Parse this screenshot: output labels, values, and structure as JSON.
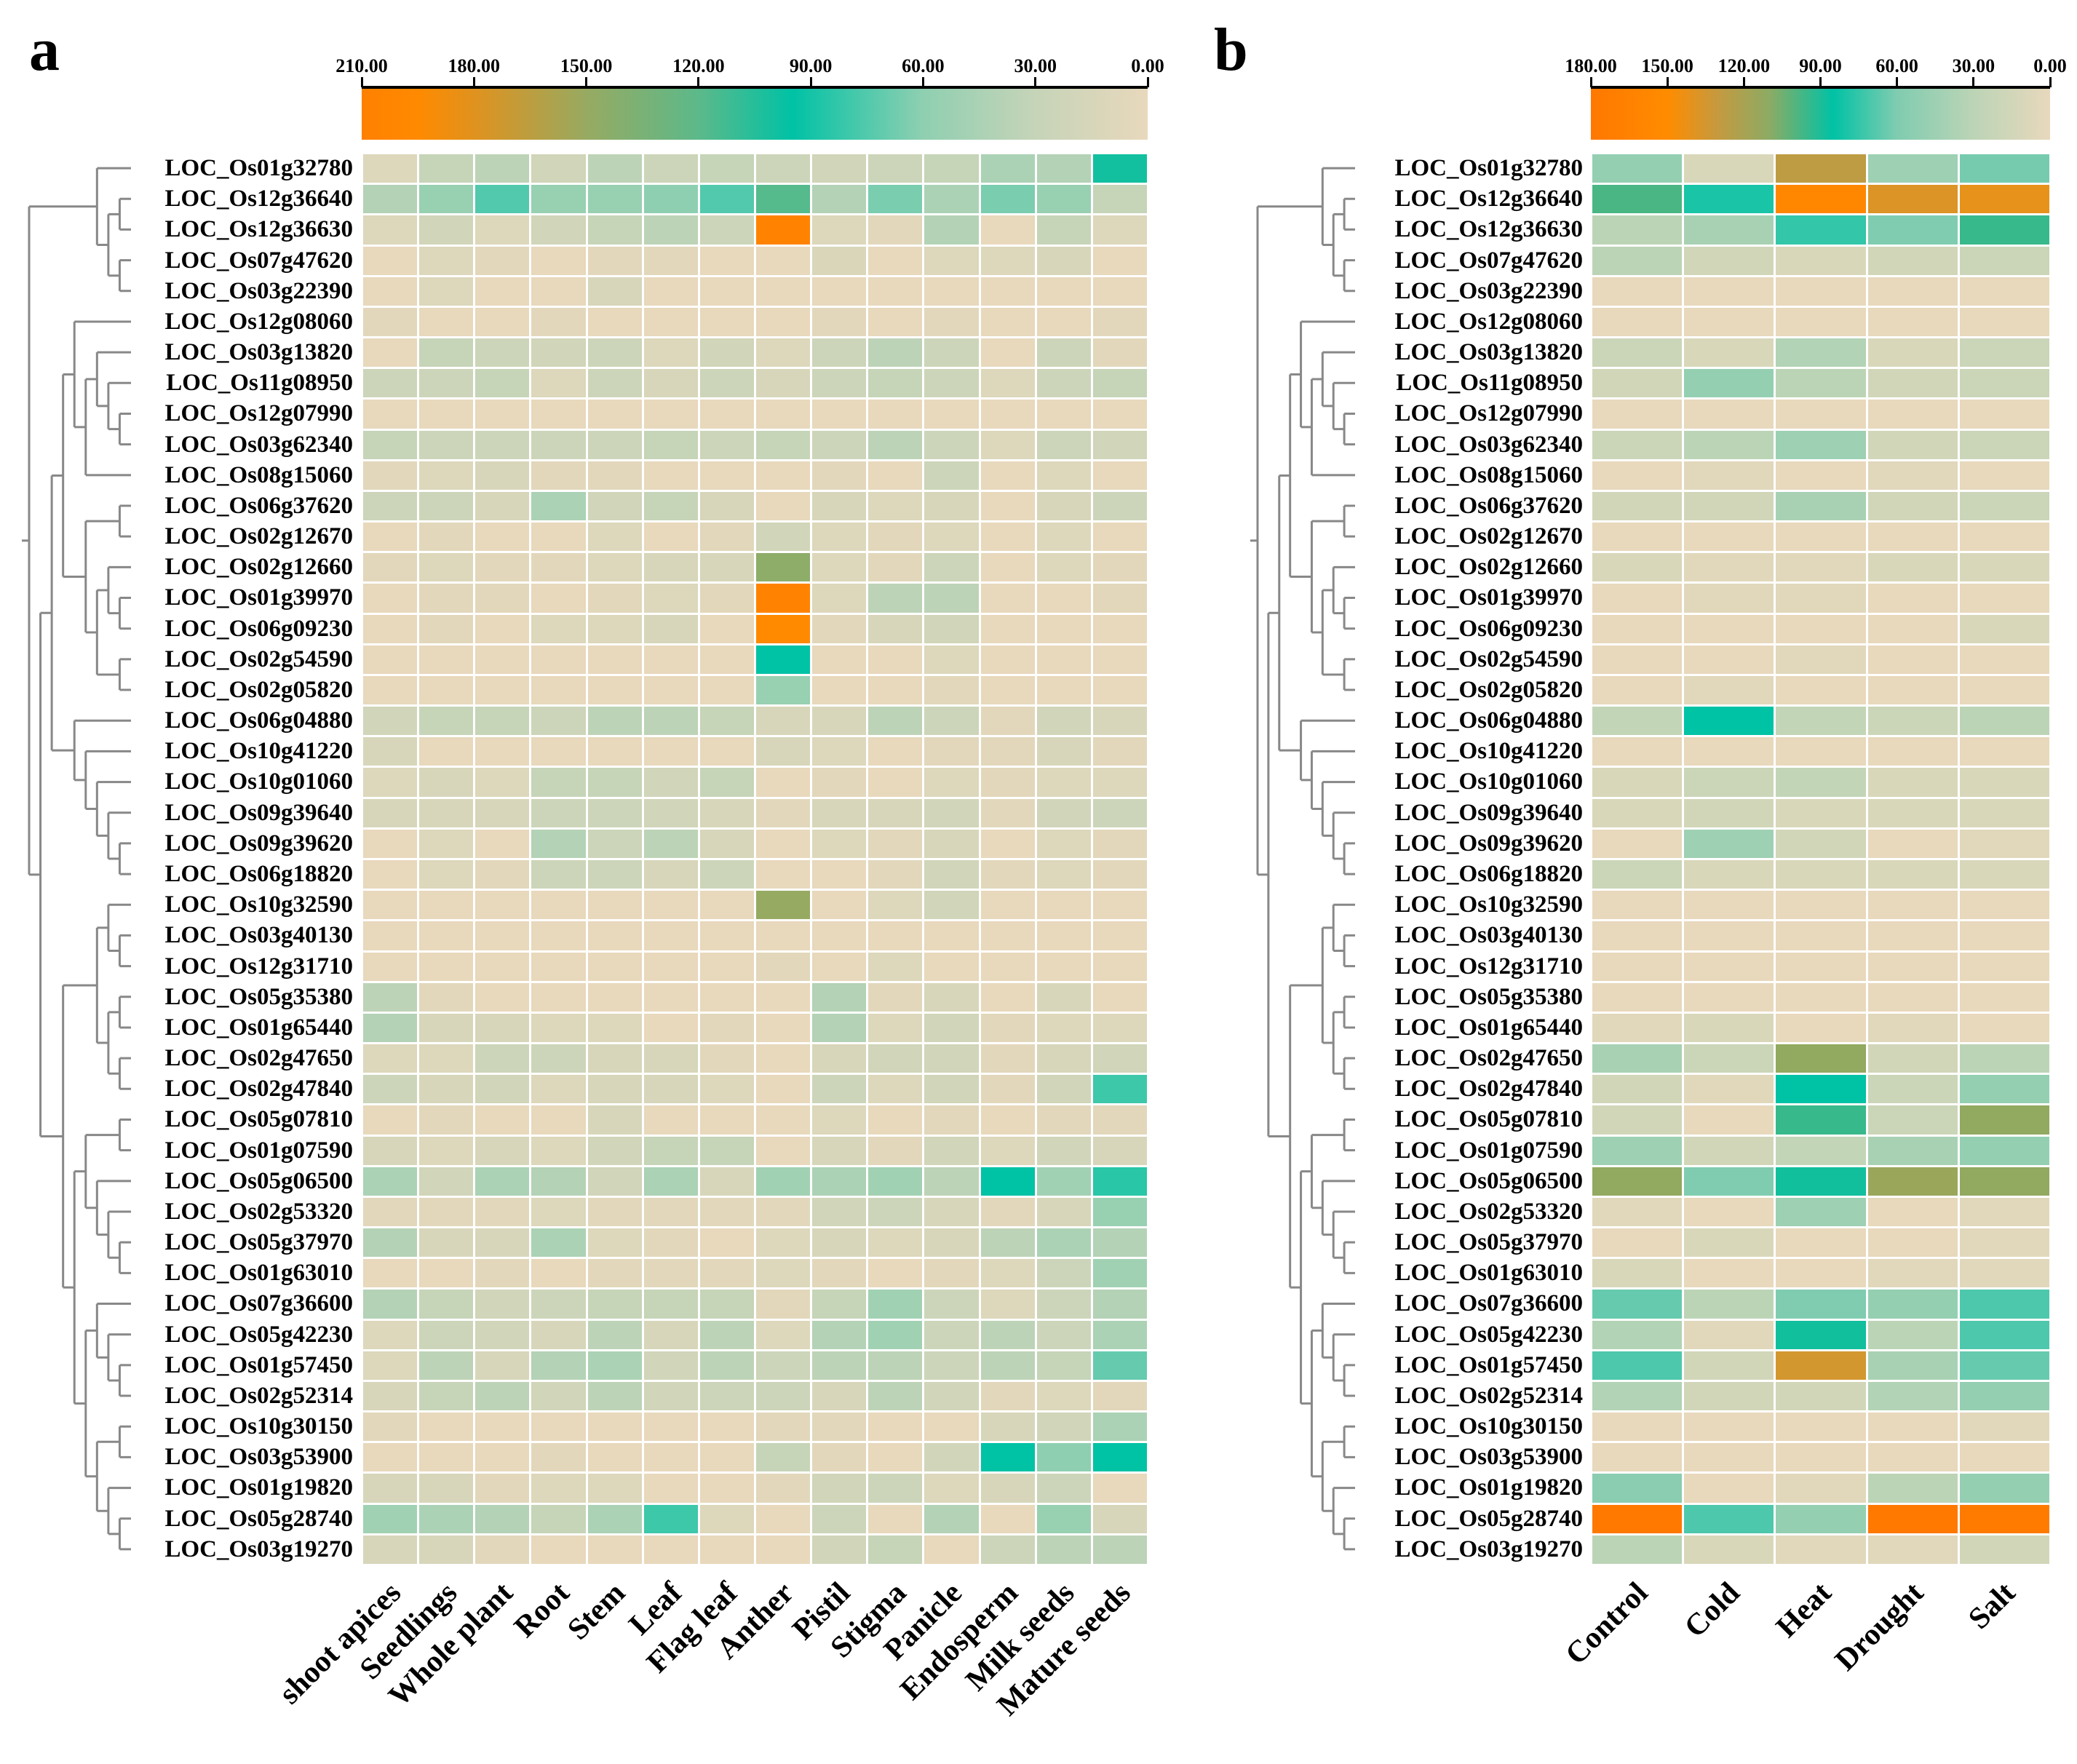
{
  "panels": {
    "a": {
      "letter": "a"
    },
    "b": {
      "letter": "b"
    }
  },
  "chart_data": [
    {
      "type": "heatmap",
      "title": "a",
      "colorbar": {
        "ticks": [
          "210.00",
          "180.00",
          "150.00",
          "120.00",
          "90.00",
          "60.00",
          "30.00",
          "0.00"
        ],
        "range": [
          0,
          210
        ],
        "stops": [
          {
            "v": 0,
            "c": "#e8d8bc"
          },
          {
            "v": 30,
            "c": "#c6d4b8"
          },
          {
            "v": 60,
            "c": "#8fcfb1"
          },
          {
            "v": 95,
            "c": "#00c2a5"
          },
          {
            "v": 120,
            "c": "#5cb98a"
          },
          {
            "v": 150,
            "c": "#97aa62"
          },
          {
            "v": 180,
            "c": "#e0921e"
          },
          {
            "v": 195,
            "c": "#ff8a00"
          },
          {
            "v": 210,
            "c": "#ff8000"
          }
        ]
      },
      "columns": [
        "shoot apices",
        "Seedlings",
        "Whole plant",
        "Root",
        "Stem",
        "Leaf",
        "Flag leaf",
        "Anther",
        "Pistil",
        "Stigma",
        "Panicle",
        "Endosperm",
        "Milk seeds",
        "Mature seeds"
      ],
      "rows": [
        "LOC_Os01g32780",
        "LOC_Os12g36640",
        "LOC_Os12g36630",
        "LOC_Os07g47620",
        "LOC_Os03g22390",
        "LOC_Os12g08060",
        "LOC_Os03g13820",
        "LOC_Os11g08950",
        "LOC_Os12g07990",
        "LOC_Os03g62340",
        "LOC_Os08g15060",
        "LOC_Os06g37620",
        "LOC_Os02g12670",
        "LOC_Os02g12660",
        "LOC_Os01g39970",
        "LOC_Os06g09230",
        "LOC_Os02g54590",
        "LOC_Os02g05820",
        "LOC_Os06g04880",
        "LOC_Os10g41220",
        "LOC_Os10g01060",
        "LOC_Os09g39640",
        "LOC_Os09g39620",
        "LOC_Os06g18820",
        "LOC_Os10g32590",
        "LOC_Os03g40130",
        "LOC_Os12g31710",
        "LOC_Os05g35380",
        "LOC_Os01g65440",
        "LOC_Os02g47650",
        "LOC_Os02g47840",
        "LOC_Os05g07810",
        "LOC_Os01g07590",
        "LOC_Os05g06500",
        "LOC_Os02g53320",
        "LOC_Os05g37970",
        "LOC_Os01g63010",
        "LOC_Os07g36600",
        "LOC_Os05g42230",
        "LOC_Os01g57450",
        "LOC_Os02g52314",
        "LOC_Os10g30150",
        "LOC_Os03g53900",
        "LOC_Os01g19820",
        "LOC_Os05g28740",
        "LOC_Os03g19270"
      ],
      "values": [
        [
          10,
          30,
          35,
          20,
          35,
          25,
          30,
          25,
          20,
          25,
          30,
          45,
          40,
          100
        ],
        [
          40,
          55,
          75,
          55,
          55,
          60,
          75,
          118,
          40,
          65,
          45,
          65,
          55,
          30
        ],
        [
          10,
          20,
          10,
          20,
          30,
          35,
          25,
          205,
          10,
          5,
          40,
          0,
          30,
          10
        ],
        [
          0,
          10,
          5,
          0,
          5,
          5,
          0,
          0,
          12,
          0,
          10,
          10,
          15,
          0
        ],
        [
          0,
          10,
          0,
          0,
          15,
          0,
          0,
          0,
          0,
          0,
          0,
          0,
          0,
          0
        ],
        [
          5,
          0,
          0,
          5,
          0,
          0,
          0,
          0,
          5,
          0,
          5,
          0,
          0,
          5
        ],
        [
          0,
          30,
          25,
          20,
          25,
          10,
          20,
          10,
          25,
          35,
          25,
          0,
          25,
          5
        ],
        [
          25,
          25,
          30,
          10,
          25,
          15,
          25,
          15,
          25,
          30,
          25,
          10,
          25,
          30
        ],
        [
          0,
          0,
          0,
          0,
          0,
          0,
          0,
          0,
          0,
          0,
          0,
          0,
          0,
          0
        ],
        [
          30,
          25,
          25,
          25,
          25,
          30,
          25,
          30,
          25,
          35,
          25,
          10,
          25,
          20
        ],
        [
          5,
          10,
          15,
          5,
          5,
          0,
          0,
          0,
          5,
          0,
          25,
          0,
          10,
          0
        ],
        [
          25,
          25,
          15,
          45,
          20,
          30,
          15,
          0,
          15,
          10,
          15,
          0,
          15,
          25
        ],
        [
          0,
          5,
          0,
          0,
          10,
          0,
          5,
          20,
          10,
          5,
          10,
          0,
          10,
          0
        ],
        [
          5,
          10,
          5,
          5,
          10,
          15,
          15,
          145,
          10,
          5,
          25,
          0,
          10,
          5
        ],
        [
          0,
          5,
          5,
          0,
          5,
          10,
          5,
          205,
          10,
          35,
          35,
          0,
          0,
          5
        ],
        [
          0,
          5,
          0,
          10,
          10,
          15,
          0,
          195,
          5,
          15,
          20,
          0,
          0,
          0
        ],
        [
          0,
          0,
          0,
          0,
          0,
          0,
          0,
          95,
          0,
          0,
          10,
          0,
          0,
          0
        ],
        [
          0,
          0,
          0,
          0,
          0,
          0,
          0,
          55,
          0,
          0,
          5,
          0,
          0,
          0
        ],
        [
          20,
          30,
          30,
          25,
          35,
          35,
          30,
          15,
          15,
          35,
          25,
          5,
          20,
          15
        ],
        [
          15,
          0,
          0,
          0,
          0,
          0,
          0,
          15,
          10,
          0,
          5,
          5,
          15,
          5
        ],
        [
          10,
          15,
          10,
          30,
          30,
          20,
          30,
          0,
          5,
          0,
          10,
          5,
          10,
          10
        ],
        [
          15,
          15,
          15,
          25,
          25,
          20,
          15,
          5,
          15,
          15,
          20,
          5,
          20,
          25
        ],
        [
          0,
          10,
          0,
          40,
          25,
          35,
          15,
          0,
          10,
          5,
          15,
          0,
          10,
          5
        ],
        [
          0,
          10,
          5,
          25,
          25,
          15,
          25,
          0,
          0,
          5,
          20,
          5,
          10,
          5
        ],
        [
          0,
          0,
          0,
          0,
          0,
          0,
          0,
          150,
          0,
          10,
          20,
          0,
          0,
          0
        ],
        [
          0,
          0,
          0,
          0,
          0,
          0,
          0,
          0,
          0,
          0,
          0,
          0,
          0,
          0
        ],
        [
          0,
          0,
          0,
          0,
          0,
          0,
          0,
          5,
          0,
          10,
          0,
          0,
          0,
          0
        ],
        [
          35,
          5,
          0,
          0,
          0,
          0,
          0,
          0,
          40,
          5,
          15,
          0,
          15,
          0
        ],
        [
          40,
          15,
          15,
          10,
          10,
          0,
          5,
          0,
          40,
          10,
          20,
          5,
          10,
          10
        ],
        [
          10,
          10,
          25,
          25,
          15,
          15,
          5,
          0,
          15,
          20,
          20,
          5,
          15,
          20
        ],
        [
          25,
          15,
          20,
          10,
          15,
          15,
          10,
          0,
          25,
          10,
          20,
          5,
          20,
          80
        ],
        [
          0,
          5,
          0,
          0,
          15,
          0,
          0,
          0,
          10,
          0,
          5,
          0,
          5,
          5
        ],
        [
          15,
          10,
          15,
          10,
          20,
          30,
          30,
          0,
          15,
          5,
          20,
          10,
          20,
          15
        ],
        [
          45,
          20,
          45,
          40,
          20,
          45,
          15,
          50,
          45,
          50,
          35,
          95,
          50,
          85
        ],
        [
          5,
          5,
          5,
          10,
          5,
          5,
          5,
          5,
          20,
          25,
          15,
          5,
          15,
          55
        ],
        [
          40,
          15,
          15,
          45,
          10,
          5,
          0,
          10,
          15,
          10,
          15,
          35,
          45,
          40
        ],
        [
          0,
          0,
          5,
          0,
          5,
          5,
          5,
          10,
          5,
          0,
          5,
          10,
          25,
          50
        ],
        [
          40,
          30,
          20,
          25,
          30,
          30,
          30,
          5,
          30,
          50,
          25,
          10,
          25,
          40
        ],
        [
          10,
          25,
          20,
          15,
          35,
          15,
          35,
          10,
          40,
          50,
          25,
          35,
          25,
          45
        ],
        [
          10,
          35,
          15,
          40,
          45,
          20,
          35,
          25,
          35,
          35,
          25,
          35,
          30,
          70
        ],
        [
          15,
          30,
          35,
          20,
          35,
          20,
          25,
          25,
          15,
          35,
          20,
          5,
          10,
          5
        ],
        [
          5,
          0,
          0,
          0,
          0,
          0,
          0,
          5,
          5,
          0,
          0,
          15,
          20,
          45
        ],
        [
          0,
          0,
          0,
          5,
          0,
          0,
          0,
          30,
          5,
          0,
          20,
          95,
          60,
          95
        ],
        [
          15,
          15,
          5,
          10,
          10,
          0,
          0,
          5,
          20,
          25,
          10,
          15,
          25,
          0
        ],
        [
          50,
          45,
          40,
          30,
          45,
          80,
          10,
          0,
          25,
          0,
          40,
          0,
          55,
          15
        ],
        [
          15,
          15,
          5,
          0,
          0,
          0,
          0,
          0,
          20,
          30,
          0,
          25,
          35,
          35
        ]
      ]
    },
    {
      "type": "heatmap",
      "title": "b",
      "colorbar": {
        "ticks": [
          "180.00",
          "150.00",
          "120.00",
          "90.00",
          "60.00",
          "30.00",
          "0.00"
        ],
        "range": [
          0,
          180
        ],
        "stops": [
          {
            "v": 0,
            "c": "#e8d8bc"
          },
          {
            "v": 30,
            "c": "#bcd4b6"
          },
          {
            "v": 60,
            "c": "#80ccb0"
          },
          {
            "v": 85,
            "c": "#00c2a5"
          },
          {
            "v": 110,
            "c": "#8cab64"
          },
          {
            "v": 130,
            "c": "#c49a40"
          },
          {
            "v": 150,
            "c": "#ff8c00"
          },
          {
            "v": 180,
            "c": "#ff7800"
          }
        ]
      },
      "columns": [
        "Control",
        "Cold",
        "Heat",
        "Drought",
        "Salt"
      ],
      "rows": [
        "LOC_Os01g32780",
        "LOC_Os12g36640",
        "LOC_Os12g36630",
        "LOC_Os07g47620",
        "LOC_Os03g22390",
        "LOC_Os12g08060",
        "LOC_Os03g13820",
        "LOC_Os11g08950",
        "LOC_Os12g07990",
        "LOC_Os03g62340",
        "LOC_Os08g15060",
        "LOC_Os06g37620",
        "LOC_Os02g12670",
        "LOC_Os02g12660",
        "LOC_Os01g39970",
        "LOC_Os06g09230",
        "LOC_Os02g54590",
        "LOC_Os02g05820",
        "LOC_Os06g04880",
        "LOC_Os10g41220",
        "LOC_Os10g01060",
        "LOC_Os09g39640",
        "LOC_Os09g39620",
        "LOC_Os06g18820",
        "LOC_Os10g32590",
        "LOC_Os03g40130",
        "LOC_Os12g31710",
        "LOC_Os05g35380",
        "LOC_Os01g65440",
        "LOC_Os02g47650",
        "LOC_Os02g47840",
        "LOC_Os05g07810",
        "LOC_Os01g07590",
        "LOC_Os05g06500",
        "LOC_Os02g53320",
        "LOC_Os05g37970",
        "LOC_Os01g63010",
        "LOC_Os07g36600",
        "LOC_Os05g42230",
        "LOC_Os01g57450",
        "LOC_Os02g52314",
        "LOC_Os10g30150",
        "LOC_Os03g53900",
        "LOC_Os01g19820",
        "LOC_Os05g28740",
        "LOC_Os03g19270"
      ],
      "values": [
        [
          50,
          10,
          128,
          45,
          62
        ],
        [
          98,
          80,
          158,
          138,
          142
        ],
        [
          30,
          40,
          75,
          60,
          95
        ],
        [
          30,
          15,
          10,
          15,
          20
        ],
        [
          0,
          0,
          0,
          0,
          0
        ],
        [
          0,
          0,
          0,
          0,
          0
        ],
        [
          20,
          10,
          35,
          10,
          20
        ],
        [
          15,
          50,
          30,
          15,
          20
        ],
        [
          0,
          0,
          0,
          0,
          0
        ],
        [
          20,
          30,
          45,
          15,
          20
        ],
        [
          0,
          5,
          0,
          5,
          0
        ],
        [
          15,
          15,
          40,
          15,
          20
        ],
        [
          0,
          0,
          0,
          0,
          0
        ],
        [
          10,
          5,
          5,
          10,
          10
        ],
        [
          0,
          5,
          5,
          0,
          0
        ],
        [
          0,
          0,
          0,
          0,
          10
        ],
        [
          0,
          0,
          5,
          0,
          0
        ],
        [
          0,
          5,
          0,
          0,
          0
        ],
        [
          25,
          85,
          25,
          20,
          30
        ],
        [
          0,
          0,
          0,
          0,
          0
        ],
        [
          10,
          20,
          25,
          10,
          10
        ],
        [
          10,
          15,
          10,
          10,
          10
        ],
        [
          0,
          45,
          15,
          0,
          5
        ],
        [
          20,
          10,
          10,
          10,
          10
        ],
        [
          0,
          0,
          0,
          0,
          0
        ],
        [
          0,
          0,
          0,
          0,
          0
        ],
        [
          0,
          0,
          0,
          0,
          0
        ],
        [
          0,
          0,
          0,
          0,
          0
        ],
        [
          5,
          10,
          0,
          5,
          0
        ],
        [
          40,
          20,
          112,
          15,
          30
        ],
        [
          15,
          5,
          85,
          20,
          50
        ],
        [
          15,
          0,
          95,
          20,
          112
        ],
        [
          45,
          15,
          25,
          40,
          50
        ],
        [
          112,
          60,
          88,
          115,
          112
        ],
        [
          5,
          0,
          45,
          0,
          5
        ],
        [
          0,
          10,
          0,
          0,
          5
        ],
        [
          10,
          0,
          0,
          5,
          5
        ],
        [
          65,
          30,
          60,
          50,
          70
        ],
        [
          35,
          5,
          88,
          30,
          70
        ],
        [
          70,
          15,
          135,
          40,
          65
        ],
        [
          35,
          15,
          15,
          35,
          50
        ],
        [
          0,
          0,
          0,
          0,
          5
        ],
        [
          0,
          0,
          0,
          0,
          0
        ],
        [
          55,
          0,
          5,
          30,
          50
        ],
        [
          180,
          70,
          50,
          180,
          175
        ],
        [
          30,
          10,
          5,
          5,
          15
        ]
      ]
    }
  ]
}
